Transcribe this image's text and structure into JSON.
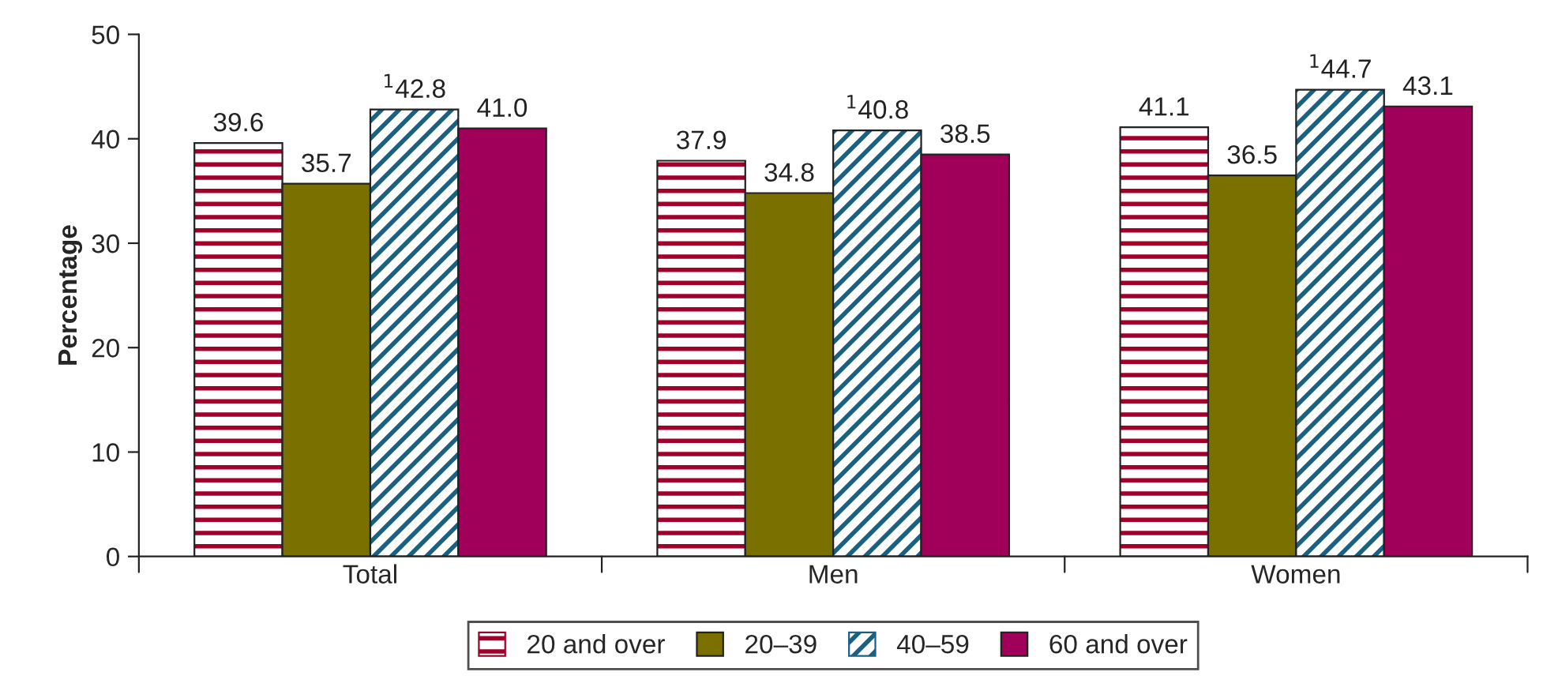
{
  "chart_data": {
    "type": "bar",
    "ylabel": "Percentage",
    "categories": [
      "Total",
      "Men",
      "Women"
    ],
    "series": [
      {
        "name": "20 and over",
        "color": "#a0002a",
        "values": [
          39.6,
          37.9,
          41.1
        ],
        "value_labels": [
          "39.6",
          "37.9",
          "41.1"
        ]
      },
      {
        "name": "20–39",
        "color": "#7a7000",
        "values": [
          35.7,
          34.8,
          36.5
        ],
        "value_labels": [
          "35.7",
          "34.8",
          "36.5"
        ]
      },
      {
        "name": "40–59",
        "color": "#1a6080",
        "values": [
          42.8,
          40.8,
          44.7
        ],
        "value_labels": [
          "$^{1}$42.8",
          "$^{1}$40.8",
          "$^{1}$44.7"
        ]
      },
      {
        "name": "60 and over",
        "color": "#a0005a",
        "values": [
          41.0,
          38.5,
          43.1
        ],
        "value_labels": [
          "41.0",
          "38.5",
          "43.1"
        ]
      }
    ],
    "ylim": [
      0,
      50
    ],
    "yticks": [
      0,
      10,
      20,
      30,
      40,
      50
    ],
    "grid": false,
    "legend": "bottom"
  }
}
